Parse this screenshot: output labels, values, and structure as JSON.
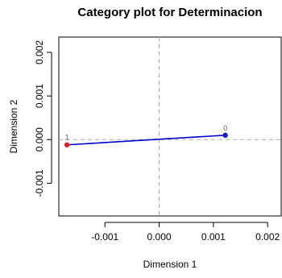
{
  "chart_data": {
    "type": "scatter",
    "title": "Category plot for Determinacion",
    "xlabel": "Dimension 1",
    "ylabel": "Dimension 2",
    "xlim": [
      -0.00185,
      0.00225
    ],
    "ylim": [
      -0.00175,
      0.00235
    ],
    "x_ticks": [
      -0.001,
      0.0,
      0.001,
      0.002
    ],
    "x_tick_labels": [
      "-0.001",
      "0.000",
      "0.001",
      "0.002"
    ],
    "y_ticks": [
      -0.001,
      0.0,
      0.001,
      0.002
    ],
    "y_tick_labels": [
      "-0.001",
      "0.000",
      "0.001",
      "0.002"
    ],
    "reference_lines": {
      "x": 0,
      "y": 0,
      "style": "dashed",
      "color": "#aaaaaa"
    },
    "line_color": "#0000cc",
    "points": [
      {
        "label": "1",
        "x": -0.0017,
        "y": -0.00012,
        "color": "#e02020"
      },
      {
        "label": "0",
        "x": 0.00122,
        "y": 0.0001,
        "color": "#1a1acc"
      }
    ]
  }
}
